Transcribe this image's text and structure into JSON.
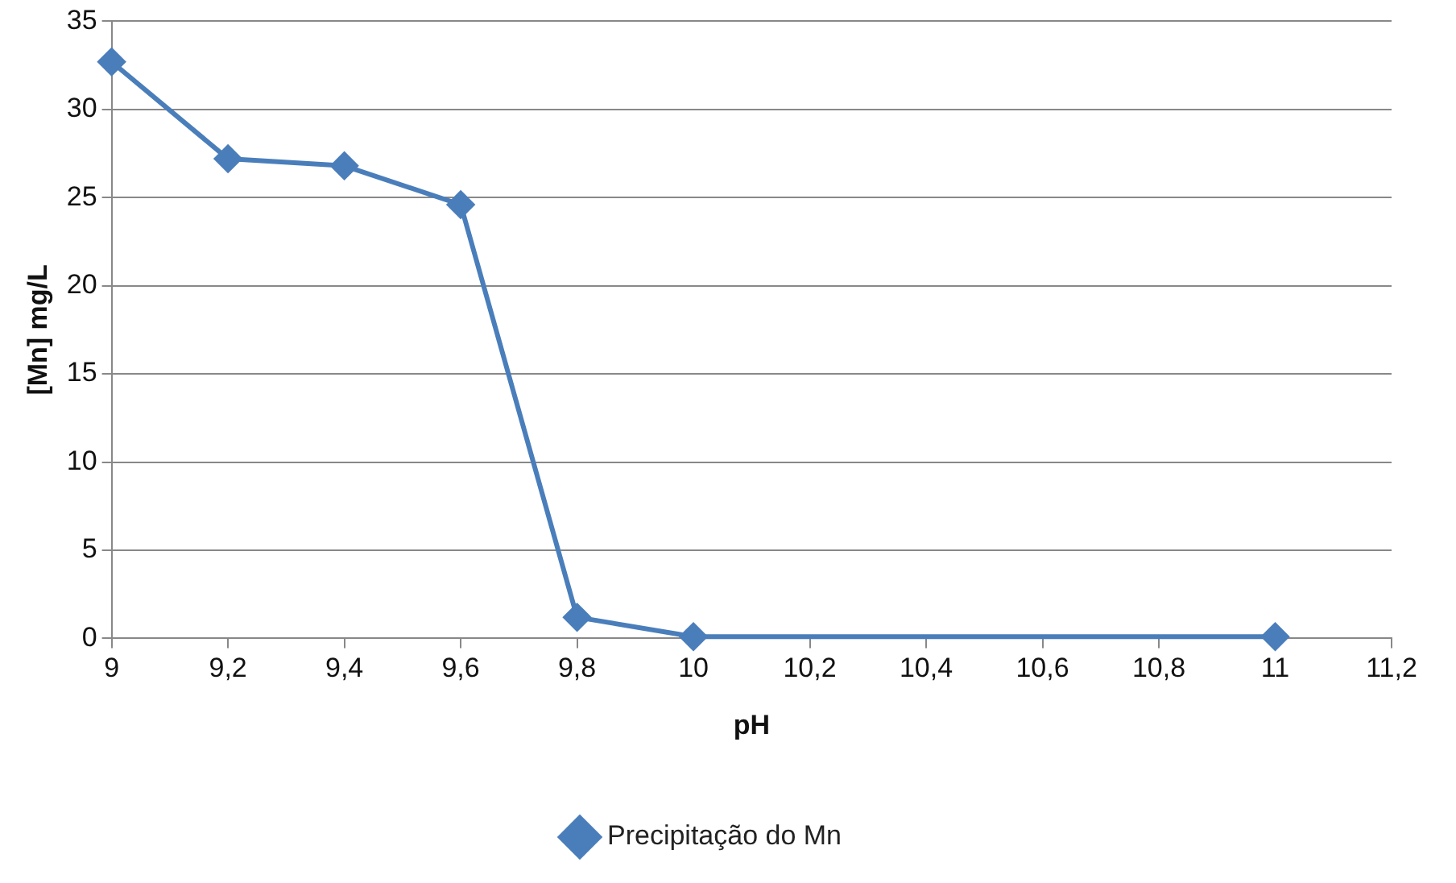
{
  "chart_data": {
    "type": "line",
    "xlabel": "pH",
    "ylabel": "[Mn] mg/L",
    "x": [
      9,
      9.2,
      9.4,
      9.6,
      9.8,
      10,
      11
    ],
    "series": [
      {
        "name": "Precipitação do Mn",
        "color": "#4a7ebb",
        "values": [
          32.7,
          27.2,
          26.8,
          24.6,
          1.2,
          0.1,
          0.1
        ]
      }
    ],
    "xlim": [
      9,
      11.2
    ],
    "xticks": [
      9,
      {
        "value": 9.2,
        "label": "9,2"
      },
      {
        "value": 9.4,
        "label": "9,4"
      },
      {
        "value": 9.6,
        "label": "9,6"
      },
      {
        "value": 9.8,
        "label": "9,8"
      },
      10,
      {
        "value": 10.2,
        "label": "10,2"
      },
      {
        "value": 10.4,
        "label": "10,4"
      },
      {
        "value": 10.6,
        "label": "10,6"
      },
      {
        "value": 10.8,
        "label": "10,8"
      },
      11,
      {
        "value": 11.2,
        "label": "11,2"
      }
    ],
    "ylim": [
      0,
      35
    ],
    "yticks": [
      0,
      5,
      10,
      15,
      20,
      25,
      30,
      35
    ],
    "grid": "y",
    "legend": "bottom",
    "marker": "diamond",
    "line_style": "solid"
  }
}
